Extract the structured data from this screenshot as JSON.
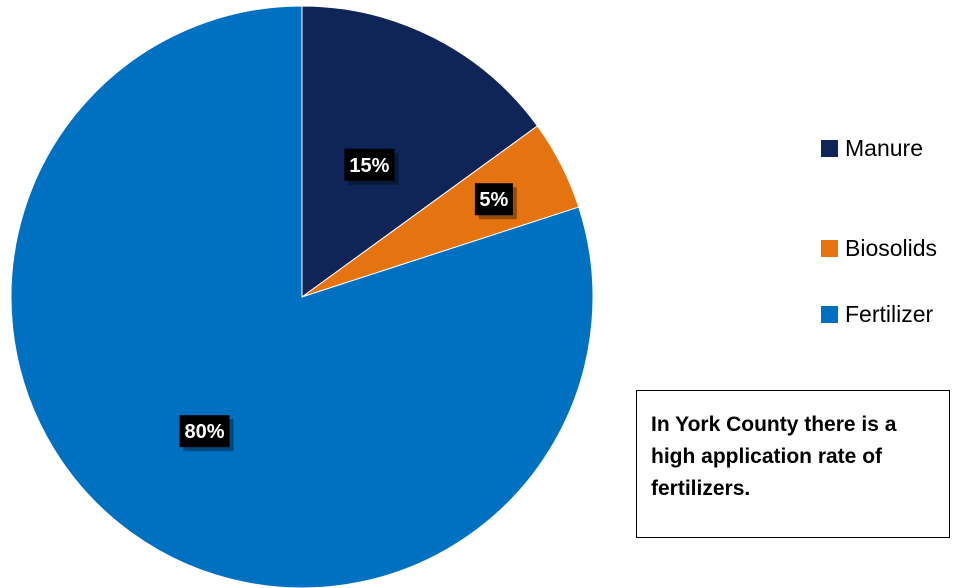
{
  "chart_data": {
    "type": "pie",
    "title": "",
    "categories": [
      "Manure",
      "Biosolids",
      "Fertilizer"
    ],
    "values": [
      15,
      5,
      80
    ],
    "labels": [
      "15%",
      "5%",
      "80%"
    ],
    "colors": [
      "#0f2557",
      "#e57310",
      "#0070c0"
    ],
    "start_angle": "12 o'clock, clockwise",
    "legend_position": "right"
  },
  "note": {
    "text": "In York County there is a high application rate of fertilizers."
  }
}
